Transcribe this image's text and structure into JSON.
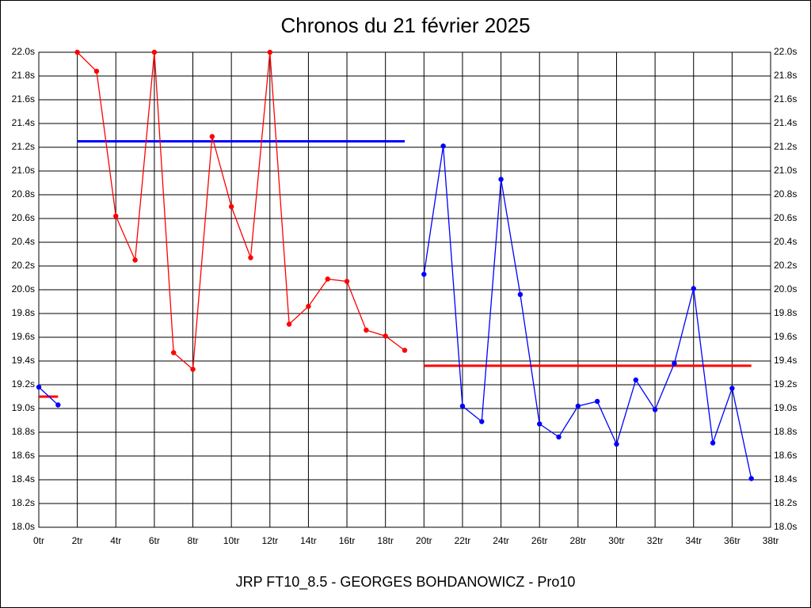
{
  "chart_data": {
    "type": "line",
    "title": "Chronos du 21 février 2025",
    "footer": "JRP FT10_8.5 - GEORGES BOHDANOWICZ - Pro10",
    "xlim": [
      0,
      38
    ],
    "xticks": [
      {
        "value": 0,
        "label": "0tr"
      },
      {
        "value": 2,
        "label": "2tr"
      },
      {
        "value": 4,
        "label": "4tr"
      },
      {
        "value": 6,
        "label": "6tr"
      },
      {
        "value": 8,
        "label": "8tr"
      },
      {
        "value": 10,
        "label": "10tr"
      },
      {
        "value": 12,
        "label": "12tr"
      },
      {
        "value": 14,
        "label": "14tr"
      },
      {
        "value": 16,
        "label": "16tr"
      },
      {
        "value": 18,
        "label": "18tr"
      },
      {
        "value": 20,
        "label": "20tr"
      },
      {
        "value": 22,
        "label": "22tr"
      },
      {
        "value": 24,
        "label": "24tr"
      },
      {
        "value": 26,
        "label": "26tr"
      },
      {
        "value": 28,
        "label": "28tr"
      },
      {
        "value": 30,
        "label": "30tr"
      },
      {
        "value": 32,
        "label": "32tr"
      },
      {
        "value": 34,
        "label": "34tr"
      },
      {
        "value": 36,
        "label": "36tr"
      },
      {
        "value": 38,
        "label": "38tr"
      }
    ],
    "ylim": [
      18.0,
      22.0
    ],
    "yticks": [
      {
        "value": 18.0,
        "label": "18.0s"
      },
      {
        "value": 18.2,
        "label": "18.2s"
      },
      {
        "value": 18.4,
        "label": "18.4s"
      },
      {
        "value": 18.6,
        "label": "18.6s"
      },
      {
        "value": 18.8,
        "label": "18.8s"
      },
      {
        "value": 19.0,
        "label": "19.0s"
      },
      {
        "value": 19.2,
        "label": "19.2s"
      },
      {
        "value": 19.4,
        "label": "19.4s"
      },
      {
        "value": 19.6,
        "label": "19.6s"
      },
      {
        "value": 19.8,
        "label": "19.8s"
      },
      {
        "value": 20.0,
        "label": "20.0s"
      },
      {
        "value": 20.2,
        "label": "20.2s"
      },
      {
        "value": 20.4,
        "label": "20.4s"
      },
      {
        "value": 20.6,
        "label": "20.6s"
      },
      {
        "value": 20.8,
        "label": "20.8s"
      },
      {
        "value": 21.0,
        "label": "21.0s"
      },
      {
        "value": 21.2,
        "label": "21.2s"
      },
      {
        "value": 21.4,
        "label": "21.4s"
      },
      {
        "value": 21.6,
        "label": "21.6s"
      },
      {
        "value": 21.8,
        "label": "21.8s"
      },
      {
        "value": 22.0,
        "label": "22.0s"
      }
    ],
    "grid": true,
    "series": [
      {
        "color": "#0000ff",
        "x": [
          0,
          1
        ],
        "values": [
          19.18,
          19.03
        ]
      },
      {
        "color": "#ff0000",
        "x": [
          2,
          3,
          4,
          5,
          6,
          7,
          8,
          9,
          10,
          11,
          12,
          13,
          14,
          15,
          16,
          17,
          18,
          19
        ],
        "values": [
          22.0,
          21.84,
          20.62,
          20.25,
          22.0,
          19.47,
          19.33,
          21.29,
          20.7,
          20.27,
          22.0,
          19.71,
          19.86,
          20.09,
          20.07,
          19.66,
          19.61,
          19.49
        ]
      },
      {
        "color": "#0000ff",
        "x": [
          20,
          21,
          22,
          23,
          24,
          25,
          26,
          27,
          28,
          29,
          30,
          31,
          32,
          33,
          34,
          35,
          36,
          37
        ],
        "values": [
          20.13,
          21.21,
          19.02,
          18.89,
          20.93,
          19.96,
          18.87,
          18.76,
          19.02,
          19.06,
          18.7,
          19.24,
          18.99,
          19.38,
          20.01,
          18.71,
          19.17,
          18.41
        ]
      }
    ],
    "averages": [
      {
        "color": "#ff0000",
        "x": [
          0,
          1
        ],
        "value": 19.1
      },
      {
        "color": "#0000ff",
        "x": [
          2,
          19
        ],
        "value": 21.25
      },
      {
        "color": "#ff0000",
        "x": [
          20,
          37
        ],
        "value": 19.36
      }
    ]
  }
}
